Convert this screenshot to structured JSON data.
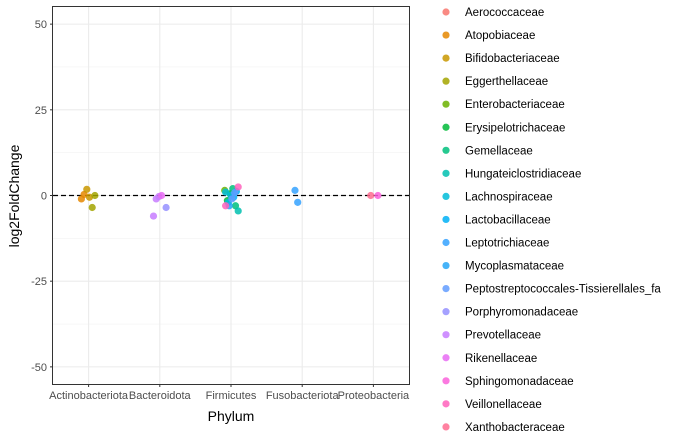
{
  "chart_data": {
    "type": "scatter",
    "xlabel": "Phylum",
    "ylabel": "log2FoldChange",
    "x_categories": [
      "Actinobacteriota",
      "Bacteroidota",
      "Firmicutes",
      "Fusobacteriota",
      "Proteobacteria"
    ],
    "ylim": [
      -55,
      55
    ],
    "y_ticks": [
      50,
      25,
      0,
      -25,
      -50
    ],
    "y_tick_labels": [
      "50",
      "25",
      "0",
      "-25",
      "-50"
    ],
    "reference_line": {
      "y": 0,
      "style": "dashed"
    },
    "grid": true,
    "legend_position": "right",
    "series": [
      {
        "name": "Aerococcaceae",
        "color": "#F8766D",
        "points": []
      },
      {
        "name": "Atopobiaceae",
        "color": "#E58700",
        "points": [
          {
            "x": "Actinobacteriota",
            "y": -1.0
          },
          {
            "x": "Actinobacteriota",
            "y": 0.3
          }
        ]
      },
      {
        "name": "Bifidobacteriaceae",
        "color": "#C99800",
        "points": [
          {
            "x": "Actinobacteriota",
            "y": 1.8
          },
          {
            "x": "Actinobacteriota",
            "y": -0.5
          }
        ]
      },
      {
        "name": "Eggerthellaceae",
        "color": "#A3A500",
        "points": [
          {
            "x": "Actinobacteriota",
            "y": -3.5
          },
          {
            "x": "Actinobacteriota",
            "y": 0.0
          }
        ]
      },
      {
        "name": "Enterobacteriaceae",
        "color": "#6BB100",
        "points": [
          {
            "x": "Firmicutes",
            "y": 1.5
          }
        ]
      },
      {
        "name": "Erysipelotrichaceae",
        "color": "#00BA38",
        "points": [
          {
            "x": "Firmicutes",
            "y": -1.5
          },
          {
            "x": "Firmicutes",
            "y": 0.5
          }
        ]
      },
      {
        "name": "Gemellaceae",
        "color": "#00BF7D",
        "points": [
          {
            "x": "Firmicutes",
            "y": 2.0
          },
          {
            "x": "Firmicutes",
            "y": -3.0
          }
        ]
      },
      {
        "name": "Hungateiclostridiaceae",
        "color": "#00C0AF",
        "points": [
          {
            "x": "Firmicutes",
            "y": -4.5
          }
        ]
      },
      {
        "name": "Lachnospiraceae",
        "color": "#00BCD8",
        "points": [
          {
            "x": "Firmicutes",
            "y": 1.0
          },
          {
            "x": "Firmicutes",
            "y": -2.0
          },
          {
            "x": "Firmicutes",
            "y": 0.0
          }
        ]
      },
      {
        "name": "Lactobacillaceae",
        "color": "#00B0F6",
        "points": [
          {
            "x": "Firmicutes",
            "y": -0.5
          },
          {
            "x": "Firmicutes",
            "y": 1.2
          }
        ]
      },
      {
        "name": "Leptotrichiaceae",
        "color": "#35A2FF",
        "points": [
          {
            "x": "Fusobacteriota",
            "y": 1.5
          },
          {
            "x": "Fusobacteriota",
            "y": -2.0
          }
        ]
      },
      {
        "name": "Mycoplasmataceae",
        "color": "#26A6F7",
        "points": [
          {
            "x": "Firmicutes",
            "y": -3.0
          }
        ]
      },
      {
        "name": "Peptostreptococcales-Tissierellales_fa",
        "color": "#619CFF",
        "points": [
          {
            "x": "Firmicutes",
            "y": -1.0
          },
          {
            "x": "Firmicutes",
            "y": 0.8
          }
        ]
      },
      {
        "name": "Porphyromonadaceae",
        "color": "#9590FF",
        "points": [
          {
            "x": "Bacteroidota",
            "y": -3.5
          }
        ]
      },
      {
        "name": "Prevotellaceae",
        "color": "#C77CFF",
        "points": [
          {
            "x": "Bacteroidota",
            "y": -6.0
          },
          {
            "x": "Bacteroidota",
            "y": -1.0
          },
          {
            "x": "Bacteroidota",
            "y": -0.3
          }
        ]
      },
      {
        "name": "Rikenellaceae",
        "color": "#E76BF3",
        "points": [
          {
            "x": "Bacteroidota",
            "y": 0.0
          }
        ]
      },
      {
        "name": "Sphingomonadaceae",
        "color": "#FA62DB",
        "points": [
          {
            "x": "Proteobacteria",
            "y": 0.0
          }
        ]
      },
      {
        "name": "Veillonellaceae",
        "color": "#FF62BC",
        "points": [
          {
            "x": "Firmicutes",
            "y": 2.5
          },
          {
            "x": "Firmicutes",
            "y": -3.0
          }
        ]
      },
      {
        "name": "Xanthobacteraceae",
        "color": "#FF6C91",
        "points": [
          {
            "x": "Proteobacteria",
            "y": 0.0
          }
        ]
      }
    ]
  }
}
